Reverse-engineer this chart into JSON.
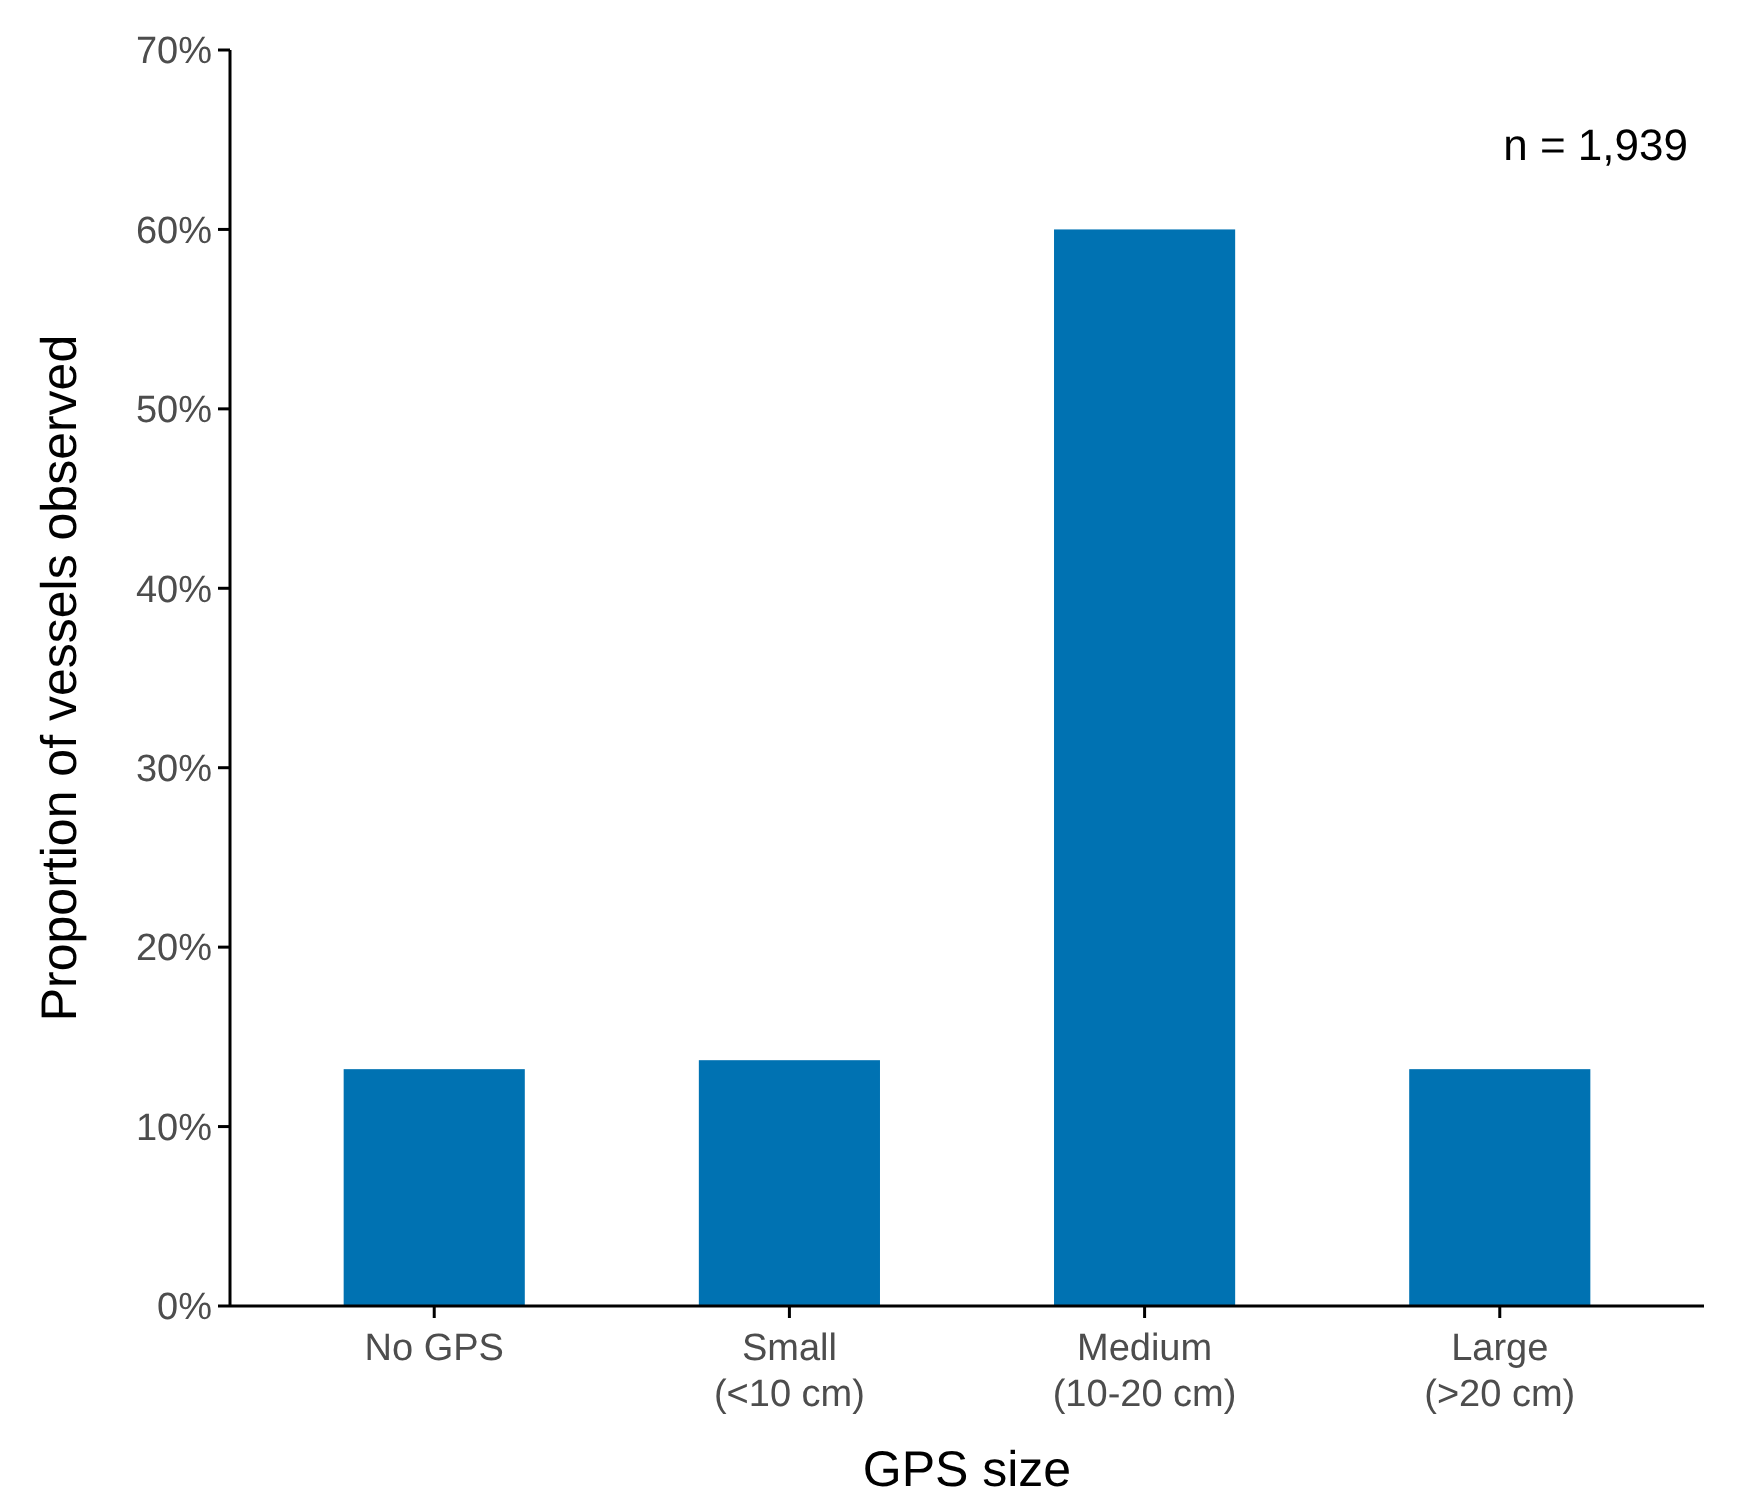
{
  "chart_data": {
    "type": "bar",
    "xlabel": "GPS size",
    "ylabel": "Proportion of vessels observed",
    "categories": [
      "No GPS",
      "Small\n(<10 cm)",
      "Medium\n(10-20 cm)",
      "Large\n(>20 cm)"
    ],
    "values": [
      13.2,
      13.7,
      60.0,
      13.2
    ],
    "color": "#0072b2",
    "ylim": [
      0,
      70
    ],
    "yticks": [
      {
        "value": 0,
        "label": "0%"
      },
      {
        "value": 10,
        "label": "10%"
      },
      {
        "value": 20,
        "label": "20%"
      },
      {
        "value": 30,
        "label": "30%"
      },
      {
        "value": 40,
        "label": "40%"
      },
      {
        "value": 50,
        "label": "50%"
      },
      {
        "value": 60,
        "label": "60%"
      },
      {
        "value": 70,
        "label": "70%"
      }
    ],
    "annotations": [
      "n = 1,939"
    ],
    "grid": false
  }
}
